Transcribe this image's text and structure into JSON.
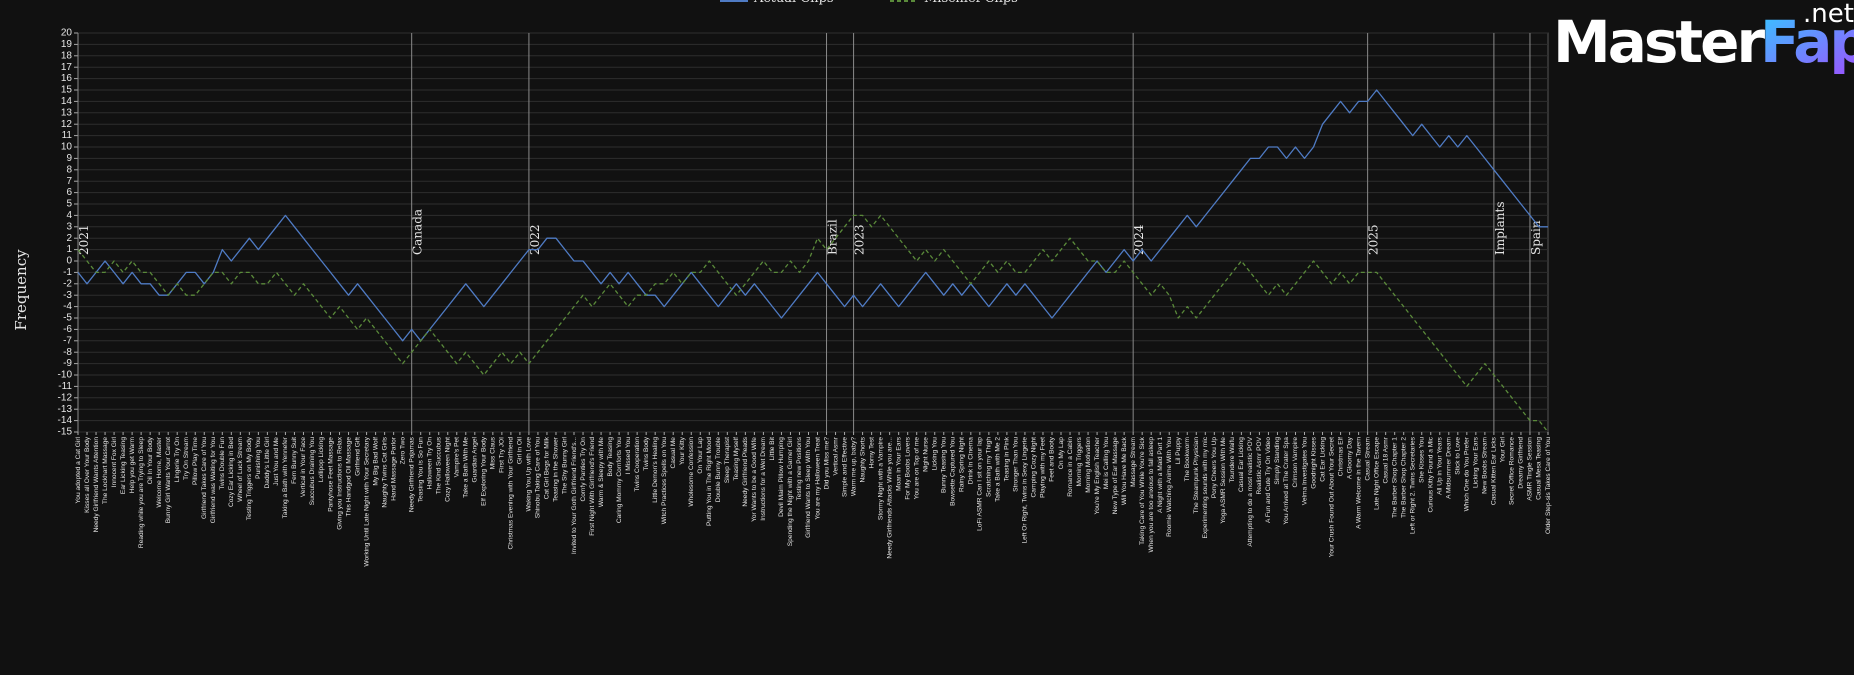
{
  "chart_data": {
    "type": "line",
    "ylabel": "Frequency",
    "ylim": [
      -15,
      20
    ],
    "yticks": [
      -15,
      -14,
      -13,
      -12,
      -11,
      -10,
      -9,
      -8,
      -7,
      -6,
      -5,
      -4,
      -3,
      -2,
      -1,
      0,
      1,
      2,
      3,
      4,
      5,
      6,
      7,
      8,
      9,
      10,
      11,
      12,
      13,
      14,
      15,
      16,
      17,
      18,
      19,
      20
    ],
    "grid": true,
    "categories": [
      "You adopted a Cat Girl",
      "Kisses all Over Your Body",
      "Needy Girlfriend Wants Attention",
      "The Lockhart Massage",
      "Innocent Fox Girl",
      "Ear Licking Teasing",
      "Help you get Warm",
      "Reading while you are Trying to Sleep",
      "Oil In Your Body",
      "Welcome Home, Master",
      "Bunny Girl Wants Your Carrot",
      "Lingerie Try On",
      "Try On Stream",
      "Pillow Play Time",
      "Girlfriend Takes Care of You",
      "Girlfriend was Waiting for You",
      "Twins Double Fun",
      "Cozy Ear Licking in Bed",
      "Wheel of Luck Stream",
      "Testing Triggers on My Body",
      "Punishing You",
      "Daddy's Little Girl",
      "Just You and Me",
      "Taking a Bath with Yennefer",
      "Fem Bunny Suit",
      "Vertical in Your Face",
      "Succubus Draining You",
      "Lollipop Licking",
      "Pantyhose Feet Massage",
      "Giving you Instructions to Relax",
      "This Handgod Oil Massage",
      "Girlfriend Gift",
      "Working Until Late Night with Your Secretary",
      "My Big Bad Wolf",
      "Naughty Twins Cat Girls",
      "Hand Massage Parlor",
      "Zero Two",
      "Needy Girlfriend Pajamas",
      "Teasing You is So Fun",
      "Halloween Try On",
      "The Kind Succubus",
      "Cozy Halloween Night",
      "Vampire's Pet",
      "Take a Bath With Me",
      "Guardian Angel",
      "Elf Exploring Your Body",
      "Miss Claus",
      "First Try JOI",
      "Christmas Evening with Your Girlfriend",
      "Girl in Oil",
      "Waking You Up with Love",
      "Shinobu Taking Care of You",
      "Cat Girl Begs for Milk",
      "Teasing in the Shower",
      "The Shy Bunny Girl",
      "Invited to Your Goth Girlfriend Friend's...",
      "Comfy Panties Try On",
      "First Night With Girlfriend's Friend",
      "Warm & Sleepy with Me",
      "Body Teasing",
      "Caring Mommy Comforts You",
      "I Missed You",
      "Twins Cooperation",
      "Twins Body",
      "Little Demon's Healing",
      "Witch Practices Spells on You",
      "Casual Me",
      "Your Kitty",
      "Wholesome Confession",
      "On Your Lap",
      "Putting You in The Right Mood",
      "Double Bunny Trouble",
      "Sleep Therapist",
      "Teasing Myself",
      "Needy Girlfriend Pleads",
      "Yor Wants to be a Good Wife",
      "Instructions for a Wet Dream",
      "Little Bit",
      "Devil Maim Pillow Humping",
      "Spending the Night with a Gamer Girl",
      "Testing new Positions",
      "Girlfriend Wants to Sleep With You",
      "You are my Halloween Treat",
      "Did you Miss me?",
      "Vertical Asmr",
      "Simple and Effective",
      "Warm me up, baby?",
      "Naughty Shorts",
      "Horny Test",
      "Stormy Night with a Vampire",
      "Needy Girlfriends Attacks While you are...",
      "Moan in Your Ears",
      "For My Boobs Lovers",
      "You are on Top of me",
      "Night Nurse",
      "Licking You",
      "Bunny Teasing You",
      "Bowsette Captured You",
      "Rainy Spring Night",
      "Drink In Cinema",
      "LoFi ASMR Can I sit on your lap",
      "Scratching my Thigh",
      "Take a Bath with Me 2",
      "Teasing in Pink",
      "Stronger Than You",
      "Left Or Right, Twins in Sexy Lingerie",
      "Camping Cozy Night",
      "Playing with my Feet",
      "Feet and Booty",
      "On My Lap",
      "Romance in a Cabin",
      "Morning Triggers",
      "Morning Motivation",
      "You're My English Teacher",
      "Mei is Calling You",
      "New Type of Ear Massage",
      "Will You Have Me Back",
      "Massage Stream",
      "Taking Care of You While You're Sick",
      "When you are too anxious to fall asleep",
      "A Night with a Maid Part 1",
      "Roomie Watching Anime With You",
      "Lil Puppy",
      "The Bookworm",
      "The Steampunk Physician",
      "Experimenting sounds with my mic",
      "Pony Cheers You Up",
      "Yoga ASMR Session With Me",
      "Tsundere Waifu",
      "Casual Ear Licking",
      "Attempting to do a most realistic POV",
      "Realistic Asmr POV",
      "A Fun and Cute Try On Video",
      "Simply Standing",
      "You Arrived at The Crater Spa",
      "Crimson Vampire",
      "Velma Investigates You",
      "Goodnight Kisses",
      "Cat Ear Licking",
      "Your Crush Found Out About Your Secret",
      "Christmas Elf",
      "A Gloomy Day",
      "A Warm Welcome in the Tavern",
      "Casual Stream",
      "Late Night Office Escape",
      "Casual 18 Asmr",
      "The Barber Shop Chapter 1",
      "The Barber Shop Chapter 2",
      "Left or Right 2. Twins Secretaries",
      "She Kisses You",
      "Curious Kitty Found a Mic",
      "All Up in Your Years",
      "A Midsummer Dream",
      "Stick to Love",
      "Which One do You Prefer",
      "Licking Your Ears",
      "New Boobs Stream",
      "Casual Kitten Ear Licks",
      "Your Girl",
      "Secret Office Romance",
      "Dreamy Girlfriend",
      "ASMR Tingle Session",
      "Casual Mesa Teasing",
      "Older Step-sis Takes Care of You"
    ],
    "series": [
      {
        "name": "Actual Clips",
        "color": "#4f7bc4",
        "dash": false,
        "values": [
          -1,
          -2,
          -1,
          0,
          -1,
          -2,
          -1,
          -2,
          -2,
          -3,
          -3,
          -2,
          -1,
          -1,
          -2,
          -1,
          1,
          0,
          1,
          2,
          1,
          2,
          3,
          4,
          3,
          2,
          1,
          0,
          -1,
          -2,
          -3,
          -2,
          -3,
          -4,
          -5,
          -6,
          -7,
          -6,
          -7,
          -6,
          -5,
          -4,
          -3,
          -2,
          -3,
          -4,
          -3,
          -2,
          -1,
          0,
          1,
          1,
          2,
          2,
          1,
          0,
          0,
          -1,
          -2,
          -1,
          -2,
          -1,
          -2,
          -3,
          -3,
          -4,
          -3,
          -2,
          -1,
          -2,
          -3,
          -4,
          -3,
          -2,
          -3,
          -2,
          -3,
          -4,
          -5,
          -4,
          -3,
          -2,
          -1,
          -2,
          -3,
          -4,
          -3,
          -4,
          -3,
          -2,
          -3,
          -4,
          -3,
          -2,
          -1,
          -2,
          -3,
          -2,
          -3,
          -2,
          -3,
          -4,
          -3,
          -2,
          -3,
          -2,
          -3,
          -4,
          -5,
          -4,
          -3,
          -2,
          -1,
          0,
          -1,
          0,
          1,
          0,
          1,
          0,
          1,
          2,
          3,
          4,
          3,
          4,
          5,
          6,
          7,
          8,
          9,
          9,
          10,
          10,
          9,
          10,
          9,
          10,
          12,
          13,
          14,
          13,
          14,
          14,
          15,
          14,
          13,
          12,
          11,
          12,
          11,
          10,
          11,
          10,
          11,
          10,
          9,
          8,
          7,
          6,
          5,
          4,
          3,
          3
        ]
      },
      {
        "name": "Mischief Clips",
        "color": "#5a8a3a",
        "dash": true,
        "values": [
          1,
          0,
          -1,
          -1,
          0,
          -1,
          0,
          -1,
          -1,
          -2,
          -3,
          -2,
          -3,
          -3,
          -2,
          -1,
          -1,
          -2,
          -1,
          -1,
          -2,
          -2,
          -1,
          -2,
          -3,
          -2,
          -3,
          -4,
          -5,
          -4,
          -5,
          -6,
          -5,
          -6,
          -7,
          -8,
          -9,
          -8,
          -7,
          -6,
          -7,
          -8,
          -9,
          -8,
          -9,
          -10,
          -9,
          -8,
          -9,
          -8,
          -9,
          -8,
          -7,
          -6,
          -5,
          -4,
          -3,
          -4,
          -3,
          -2,
          -3,
          -4,
          -3,
          -3,
          -2,
          -2,
          -1,
          -2,
          -1,
          -1,
          0,
          -1,
          -2,
          -3,
          -2,
          -1,
          0,
          -1,
          -1,
          0,
          -1,
          0,
          2,
          1,
          2,
          3,
          4,
          4,
          3,
          4,
          3,
          2,
          1,
          0,
          1,
          0,
          1,
          0,
          -1,
          -2,
          -1,
          0,
          -1,
          0,
          -1,
          -1,
          0,
          1,
          0,
          1,
          2,
          1,
          0,
          0,
          -1,
          -1,
          0,
          -1,
          -2,
          -3,
          -2,
          -3,
          -5,
          -4,
          -5,
          -4,
          -3,
          -2,
          -1,
          0,
          -1,
          -2,
          -3,
          -2,
          -3,
          -2,
          -1,
          0,
          -1,
          -2,
          -1,
          -2,
          -1,
          -1,
          -1,
          -2,
          -3,
          -4,
          -5,
          -6,
          -7,
          -8,
          -9,
          -10,
          -11,
          -10,
          -9,
          -10,
          -11,
          -12,
          -13,
          -14,
          -14,
          -15
        ]
      }
    ],
    "annotations": [
      {
        "text": "2021",
        "index": 0
      },
      {
        "text": "Canada",
        "index": 37
      },
      {
        "text": "2022",
        "index": 50
      },
      {
        "text": "Brazil",
        "index": 83
      },
      {
        "text": "2023",
        "index": 86
      },
      {
        "text": "2024",
        "index": 117
      },
      {
        "text": "2025",
        "index": 143
      },
      {
        "text": "Implants",
        "index": 157
      },
      {
        "text": "Spain",
        "index": 161
      }
    ]
  },
  "watermark": {
    "main": "Master",
    "accent": "Fap",
    "suffix": ".net"
  }
}
